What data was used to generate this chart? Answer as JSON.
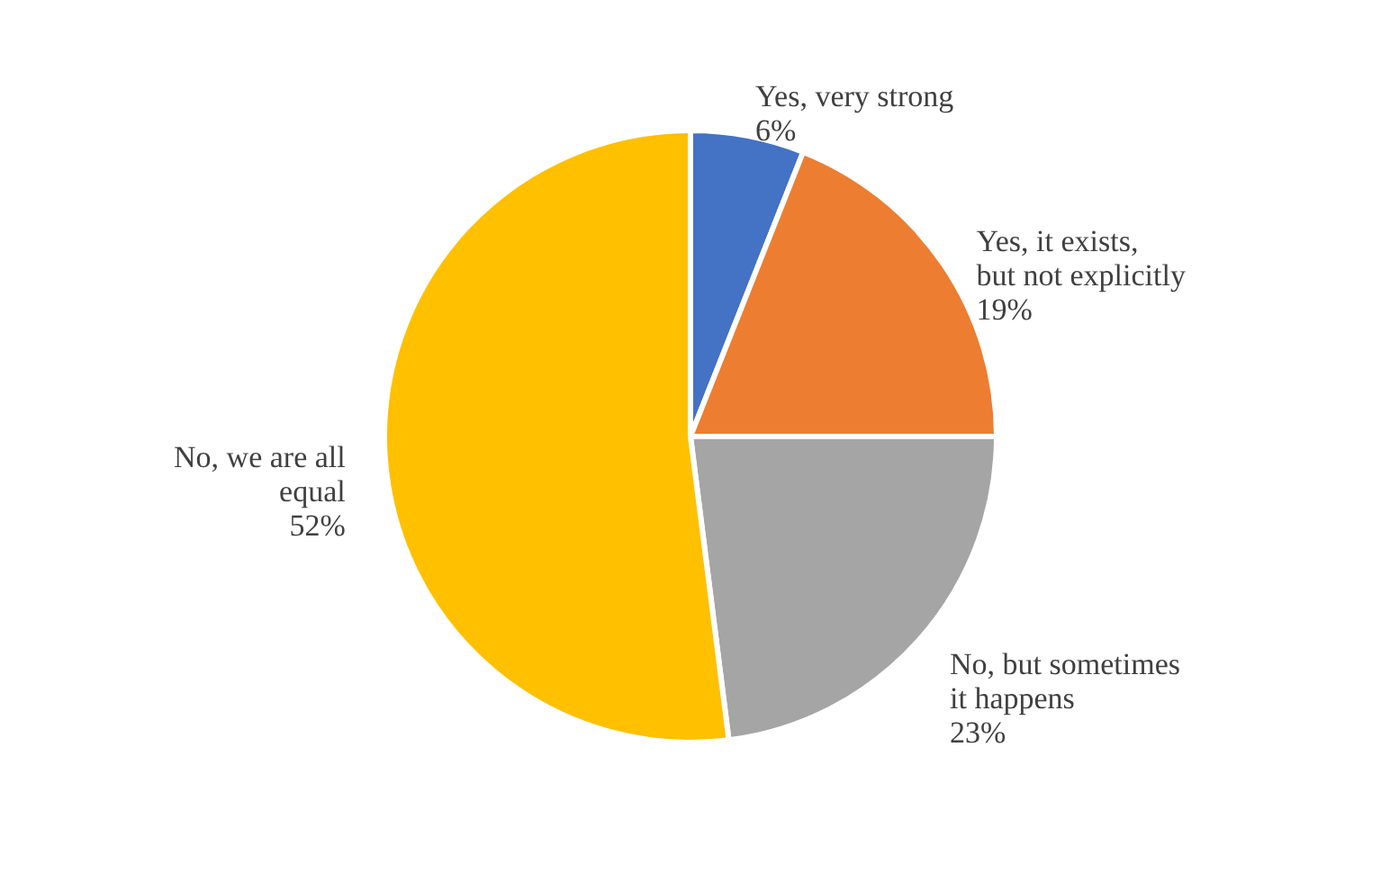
{
  "chart_data": {
    "type": "pie",
    "categories": [
      "Yes, very strong",
      "Yes, it exists, but not explicitly",
      "No, but sometimes it happens",
      "No, we are all equal"
    ],
    "values": [
      6,
      19,
      23,
      52
    ],
    "value_labels": [
      "6%",
      "19%",
      "23%",
      "52%"
    ],
    "colors": [
      "#4472c4",
      "#ed7d31",
      "#a5a5a5",
      "#ffc000"
    ],
    "legend": false
  }
}
